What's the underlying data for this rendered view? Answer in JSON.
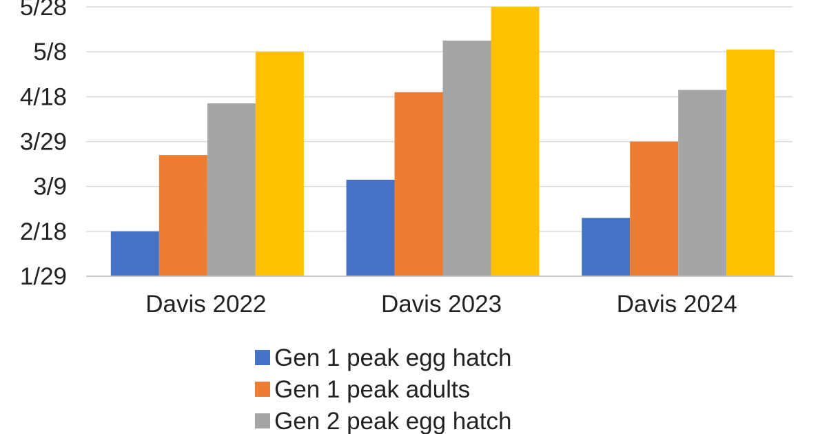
{
  "chart_data": {
    "type": "bar",
    "categories": [
      "Davis 2022",
      "Davis 2023",
      "Davis 2024"
    ],
    "series": [
      {
        "name": "Gen 1 peak egg hatch",
        "color": "#4472C4",
        "values": [
          "2/18",
          "3/12",
          "2/24"
        ]
      },
      {
        "name": "Gen 1 peak adults",
        "color": "#ED7D31",
        "values": [
          "3/23",
          "4/20",
          "3/29"
        ]
      },
      {
        "name": "Gen 2 peak egg hatch",
        "color": "#A5A5A5",
        "values": [
          "4/15",
          "5/13",
          "4/21"
        ]
      },
      {
        "name": "",
        "color": "#FFC000",
        "values": [
          "5/8",
          "5/28",
          "5/9"
        ]
      }
    ],
    "y_ticks": [
      "1/29",
      "2/18",
      "3/9",
      "3/29",
      "4/18",
      "5/8",
      "5/28"
    ],
    "ylim": [
      "1/29",
      "5/28"
    ],
    "y_scale": "date",
    "grid": true,
    "legend_position": "bottom",
    "title": "",
    "xlabel": "",
    "ylabel": ""
  }
}
